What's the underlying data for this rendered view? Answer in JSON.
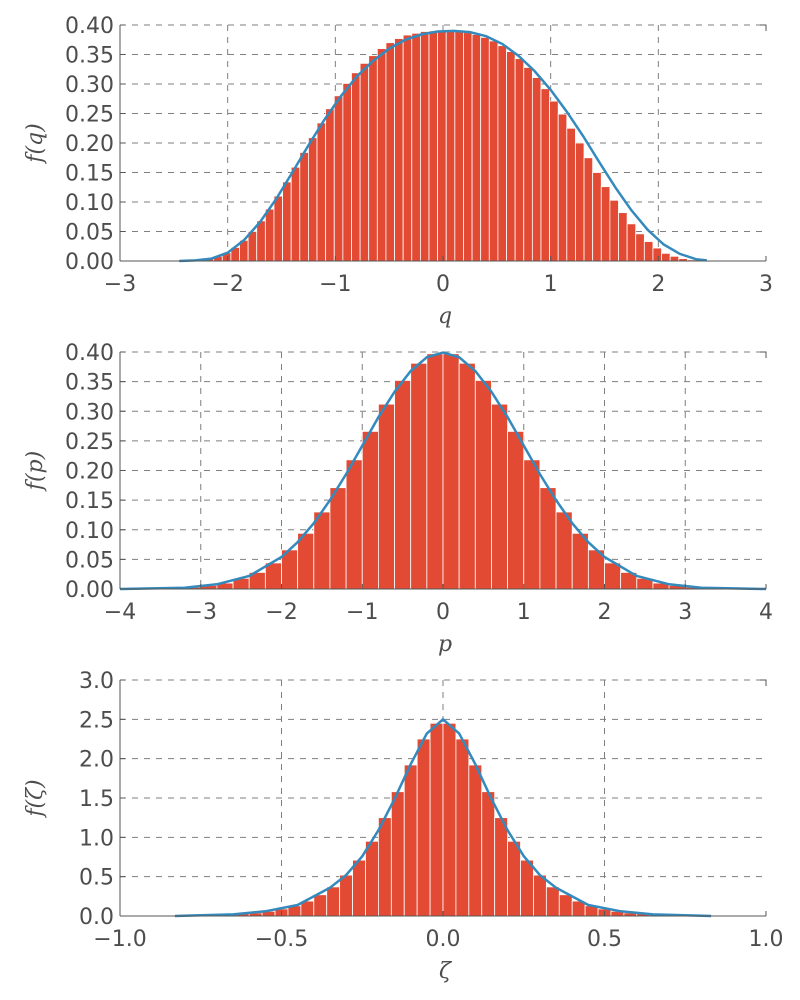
{
  "colors": {
    "bar": "#E24A33",
    "line": "#348ABD",
    "text": "#4d4d4d",
    "grid": "#7f7f7f"
  },
  "chart_data": [
    {
      "type": "bar",
      "kind": "histogram-with-density-curve",
      "xlabel": "q",
      "ylabel": "f(q)",
      "xlim": [
        -3,
        3
      ],
      "ylim": [
        0,
        0.4
      ],
      "xticks": [
        "−3",
        "−2",
        "−1",
        "0",
        "1",
        "2",
        "3"
      ],
      "yticks": [
        "0.00",
        "0.05",
        "0.10",
        "0.15",
        "0.20",
        "0.25",
        "0.30",
        "0.35",
        "0.40"
      ],
      "grid": true,
      "series": [
        {
          "type": "bar",
          "x": [
            -2.41,
            -2.33,
            -2.25,
            -2.17,
            -2.09,
            -2.01,
            -1.93,
            -1.85,
            -1.77,
            -1.69,
            -1.61,
            -1.53,
            -1.45,
            -1.37,
            -1.29,
            -1.21,
            -1.13,
            -1.05,
            -0.97,
            -0.89,
            -0.81,
            -0.73,
            -0.65,
            -0.57,
            -0.49,
            -0.41,
            -0.33,
            -0.25,
            -0.17,
            -0.09,
            -0.01,
            0.07,
            0.15,
            0.23,
            0.31,
            0.39,
            0.47,
            0.55,
            0.63,
            0.71,
            0.79,
            0.87,
            0.95,
            1.03,
            1.11,
            1.19,
            1.27,
            1.35,
            1.43,
            1.51,
            1.59,
            1.67,
            1.75,
            1.83,
            1.91,
            1.99,
            2.07,
            2.15,
            2.23,
            2.31,
            2.39
          ],
          "values": [
            0.0,
            0.001,
            0.002,
            0.004,
            0.008,
            0.014,
            0.023,
            0.035,
            0.05,
            0.068,
            0.088,
            0.11,
            0.134,
            0.159,
            0.184,
            0.209,
            0.234,
            0.258,
            0.28,
            0.301,
            0.319,
            0.335,
            0.348,
            0.36,
            0.37,
            0.377,
            0.383,
            0.386,
            0.389,
            0.39,
            0.39,
            0.39,
            0.389,
            0.387,
            0.384,
            0.379,
            0.373,
            0.365,
            0.355,
            0.343,
            0.328,
            0.311,
            0.292,
            0.271,
            0.249,
            0.225,
            0.2,
            0.175,
            0.15,
            0.126,
            0.103,
            0.082,
            0.063,
            0.046,
            0.033,
            0.022,
            0.013,
            0.008,
            0.004,
            0.002,
            0.001
          ]
        },
        {
          "type": "line",
          "x": [
            -2.45,
            -2.3,
            -2.15,
            -2.0,
            -1.85,
            -1.7,
            -1.55,
            -1.4,
            -1.25,
            -1.1,
            -0.95,
            -0.8,
            -0.65,
            -0.5,
            -0.35,
            -0.2,
            -0.05,
            0.1,
            0.25,
            0.4,
            0.55,
            0.7,
            0.85,
            1.0,
            1.15,
            1.3,
            1.45,
            1.6,
            1.75,
            1.9,
            2.05,
            2.2,
            2.35,
            2.45
          ],
          "values": [
            0.0,
            0.001,
            0.004,
            0.014,
            0.035,
            0.066,
            0.105,
            0.15,
            0.196,
            0.24,
            0.279,
            0.313,
            0.339,
            0.36,
            0.375,
            0.384,
            0.389,
            0.39,
            0.388,
            0.381,
            0.368,
            0.348,
            0.322,
            0.29,
            0.253,
            0.212,
            0.168,
            0.125,
            0.086,
            0.053,
            0.028,
            0.012,
            0.003,
            0.001
          ]
        }
      ]
    },
    {
      "type": "bar",
      "kind": "histogram-with-density-curve",
      "xlabel": "p",
      "ylabel": "f(p)",
      "xlim": [
        -4,
        4
      ],
      "ylim": [
        0,
        0.4
      ],
      "xticks": [
        "−4",
        "−3",
        "−2",
        "−1",
        "0",
        "1",
        "2",
        "3",
        "4"
      ],
      "yticks": [
        "0.00",
        "0.05",
        "0.10",
        "0.15",
        "0.20",
        "0.25",
        "0.30",
        "0.35",
        "0.40"
      ],
      "grid": true,
      "series": [
        {
          "type": "bar",
          "x": [
            -3.9,
            -3.7,
            -3.5,
            -3.3,
            -3.1,
            -2.9,
            -2.7,
            -2.5,
            -2.3,
            -2.1,
            -1.9,
            -1.7,
            -1.5,
            -1.3,
            -1.1,
            -0.9,
            -0.7,
            -0.5,
            -0.3,
            -0.1,
            0.1,
            0.3,
            0.5,
            0.7,
            0.9,
            1.1,
            1.3,
            1.5,
            1.7,
            1.9,
            2.1,
            2.3,
            2.5,
            2.7,
            2.9,
            3.1,
            3.3,
            3.5,
            3.7,
            3.9
          ],
          "values": [
            0.0,
            0.0,
            0.001,
            0.002,
            0.003,
            0.006,
            0.01,
            0.018,
            0.028,
            0.044,
            0.066,
            0.094,
            0.13,
            0.171,
            0.218,
            0.266,
            0.312,
            0.352,
            0.381,
            0.397,
            0.397,
            0.381,
            0.352,
            0.312,
            0.266,
            0.218,
            0.171,
            0.13,
            0.094,
            0.066,
            0.044,
            0.028,
            0.018,
            0.01,
            0.006,
            0.003,
            0.002,
            0.001,
            0.0,
            0.0
          ]
        },
        {
          "type": "line",
          "x": [
            -4.0,
            -3.6,
            -3.2,
            -2.8,
            -2.4,
            -2.0,
            -1.8,
            -1.6,
            -1.4,
            -1.2,
            -1.0,
            -0.8,
            -0.6,
            -0.4,
            -0.2,
            0.0,
            0.2,
            0.4,
            0.6,
            0.8,
            1.0,
            1.2,
            1.4,
            1.6,
            1.8,
            2.0,
            2.4,
            2.8,
            3.2,
            3.6,
            4.0
          ],
          "values": [
            0.0,
            0.001,
            0.002,
            0.008,
            0.022,
            0.054,
            0.079,
            0.111,
            0.15,
            0.194,
            0.242,
            0.29,
            0.333,
            0.368,
            0.391,
            0.399,
            0.391,
            0.368,
            0.333,
            0.29,
            0.242,
            0.194,
            0.15,
            0.111,
            0.079,
            0.054,
            0.022,
            0.008,
            0.002,
            0.001,
            0.0
          ]
        }
      ]
    },
    {
      "type": "bar",
      "kind": "histogram-with-density-curve",
      "xlabel": "ζ",
      "ylabel": "f(ζ)",
      "xlim": [
        -1.0,
        1.0
      ],
      "ylim": [
        0,
        3.0
      ],
      "xticks": [
        "−1.0",
        "−0.5",
        "0.0",
        "0.5",
        "1.0"
      ],
      "yticks": [
        "0.0",
        "0.5",
        "1.0",
        "1.5",
        "2.0",
        "2.5",
        "3.0"
      ],
      "grid": true,
      "series": [
        {
          "type": "bar",
          "x": [
            -0.82,
            -0.78,
            -0.74,
            -0.7,
            -0.66,
            -0.62,
            -0.58,
            -0.54,
            -0.5,
            -0.46,
            -0.42,
            -0.38,
            -0.34,
            -0.3,
            -0.26,
            -0.22,
            -0.18,
            -0.14,
            -0.1,
            -0.06,
            -0.02,
            0.02,
            0.06,
            0.1,
            0.14,
            0.18,
            0.22,
            0.26,
            0.3,
            0.34,
            0.38,
            0.42,
            0.46,
            0.5,
            0.54,
            0.58,
            0.62,
            0.66,
            0.7,
            0.74,
            0.78,
            0.82
          ],
          "values": [
            0.0,
            0.0,
            0.01,
            0.01,
            0.02,
            0.03,
            0.04,
            0.06,
            0.09,
            0.13,
            0.19,
            0.27,
            0.37,
            0.52,
            0.71,
            0.95,
            1.25,
            1.58,
            1.92,
            2.25,
            2.45,
            2.45,
            2.25,
            1.92,
            1.58,
            1.25,
            0.95,
            0.71,
            0.52,
            0.37,
            0.27,
            0.19,
            0.13,
            0.09,
            0.06,
            0.04,
            0.03,
            0.02,
            0.01,
            0.01,
            0.0,
            0.0
          ]
        },
        {
          "type": "line",
          "x": [
            -0.83,
            -0.75,
            -0.65,
            -0.55,
            -0.45,
            -0.35,
            -0.3,
            -0.25,
            -0.2,
            -0.15,
            -0.1,
            -0.05,
            0.0,
            0.05,
            0.1,
            0.15,
            0.2,
            0.25,
            0.3,
            0.35,
            0.45,
            0.55,
            0.65,
            0.75,
            0.83
          ],
          "values": [
            0.0,
            0.01,
            0.02,
            0.06,
            0.14,
            0.36,
            0.52,
            0.76,
            1.09,
            1.49,
            1.93,
            2.32,
            2.5,
            2.32,
            1.93,
            1.49,
            1.09,
            0.76,
            0.52,
            0.36,
            0.14,
            0.06,
            0.02,
            0.01,
            0.0
          ]
        }
      ]
    }
  ]
}
